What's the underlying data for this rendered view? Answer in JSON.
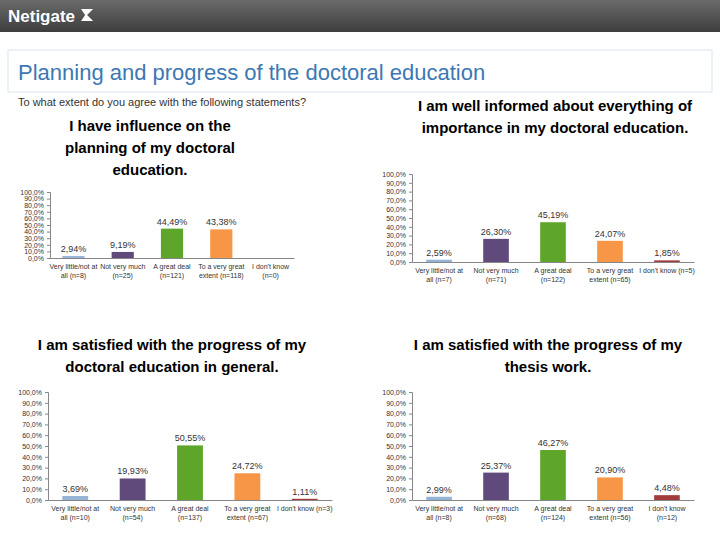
{
  "header": {
    "brand": "Netigate",
    "title": "Planning and progress of the doctoral education",
    "question": "To what extent do you agree with the following statements?"
  },
  "chart_data": [
    {
      "type": "bar",
      "title": "I have influence on the planning of my doctoral education.",
      "categories": [
        "Very little/not at all (n=8)",
        "Not very much (n=25)",
        "A great deal (n=121)",
        "To a very great extent (n=118)",
        "I don't know (n=0)"
      ],
      "values": [
        2.94,
        9.19,
        44.49,
        43.38,
        0
      ],
      "value_labels": [
        "2,94%",
        "9,19%",
        "44,49%",
        "43,38%",
        null
      ],
      "colors": [
        "#95b3d7",
        "#604a7b",
        "#5ea62a",
        "#f79646",
        "#a33b3b"
      ],
      "ylim": [
        0,
        100
      ],
      "yticks": [
        {
          "value": 0,
          "label": "0,0%"
        },
        {
          "value": 10,
          "label": "10,0%"
        },
        {
          "value": 20,
          "label": "20,0%"
        },
        {
          "value": 30,
          "label": "30,0%"
        },
        {
          "value": 40,
          "label": "40,0%"
        },
        {
          "value": 50,
          "label": "50,0%"
        },
        {
          "value": 60,
          "label": "60,0%"
        },
        {
          "value": 70,
          "label": "70,0%"
        },
        {
          "value": 80,
          "label": "80,0%"
        },
        {
          "value": 90,
          "label": "90,0%"
        },
        {
          "value": 100,
          "label": "100,0%"
        }
      ],
      "data_labels": true,
      "grid": false
    },
    {
      "type": "bar",
      "title": "I am well informed about everything of importance in my doctoral education.",
      "categories": [
        "Very little/not at all (n=7)",
        "Not very much (n=71)",
        "A great deal (n=122)",
        "To a very great extent (n=65)",
        "I don't know (n=5)"
      ],
      "values": [
        2.59,
        26.3,
        45.19,
        24.07,
        1.85
      ],
      "value_labels": [
        "2,59%",
        "26,30%",
        "45,19%",
        "24,07%",
        "1,85%"
      ],
      "colors": [
        "#95b3d7",
        "#604a7b",
        "#5ea62a",
        "#f79646",
        "#a33b3b"
      ],
      "ylim": [
        0,
        100
      ],
      "yticks": [
        {
          "value": 0,
          "label": "0,0%"
        },
        {
          "value": 10,
          "label": "10,0%"
        },
        {
          "value": 20,
          "label": "20,0%"
        },
        {
          "value": 30,
          "label": "30,0%"
        },
        {
          "value": 40,
          "label": "40,0%"
        },
        {
          "value": 50,
          "label": "50,0%"
        },
        {
          "value": 60,
          "label": "60,0%"
        },
        {
          "value": 70,
          "label": "70,0%"
        },
        {
          "value": 80,
          "label": "80,0%"
        },
        {
          "value": 90,
          "label": "90,0%"
        },
        {
          "value": 100,
          "label": "100,0%"
        }
      ],
      "data_labels": true,
      "grid": false
    },
    {
      "type": "bar",
      "title": "I am satisfied with the progress of my doctoral education in general.",
      "categories": [
        "Very little/not at all (n=10)",
        "Not very much (n=54)",
        "A great deal (n=137)",
        "To a very great extent (n=67)",
        "I don't know (n=3)"
      ],
      "values": [
        3.69,
        19.93,
        50.55,
        24.72,
        1.11
      ],
      "value_labels": [
        "3,69%",
        "19,93%",
        "50,55%",
        "24,72%",
        "1,11%"
      ],
      "colors": [
        "#95b3d7",
        "#604a7b",
        "#5ea62a",
        "#f79646",
        "#a33b3b"
      ],
      "ylim": [
        0,
        100
      ],
      "yticks": [
        {
          "value": 0,
          "label": "0,0%"
        },
        {
          "value": 10,
          "label": "10,0%"
        },
        {
          "value": 20,
          "label": "20,0%"
        },
        {
          "value": 30,
          "label": "30,0%"
        },
        {
          "value": 40,
          "label": "40,0%"
        },
        {
          "value": 50,
          "label": "50,0%"
        },
        {
          "value": 60,
          "label": "60,0%"
        },
        {
          "value": 70,
          "label": "70,0%"
        },
        {
          "value": 80,
          "label": "80,0%"
        },
        {
          "value": 90,
          "label": "90,0%"
        },
        {
          "value": 100,
          "label": "100,0%"
        }
      ],
      "data_labels": true,
      "grid": false
    },
    {
      "type": "bar",
      "title": "I am satisfied with the progress of my thesis work.",
      "categories": [
        "Very little/not at all (n=8)",
        "Not very much (n=68)",
        "A great deal (n=124)",
        "To a very great extent (n=56)",
        "I don't know (n=12)"
      ],
      "values": [
        2.99,
        25.37,
        46.27,
        20.9,
        4.48
      ],
      "value_labels": [
        "2,99%",
        "25,37%",
        "46,27%",
        "20,90%",
        "4,48%"
      ],
      "colors": [
        "#95b3d7",
        "#604a7b",
        "#5ea62a",
        "#f79646",
        "#a33b3b"
      ],
      "ylim": [
        0,
        100
      ],
      "yticks": [
        {
          "value": 0,
          "label": "0,0%"
        },
        {
          "value": 10,
          "label": "10,0%"
        },
        {
          "value": 20,
          "label": "20,0%"
        },
        {
          "value": 30,
          "label": "30,0%"
        },
        {
          "value": 40,
          "label": "40,0%"
        },
        {
          "value": 50,
          "label": "50,0%"
        },
        {
          "value": 60,
          "label": "60,0%"
        },
        {
          "value": 70,
          "label": "70,0%"
        },
        {
          "value": 80,
          "label": "80,0%"
        },
        {
          "value": 90,
          "label": "90,0%"
        },
        {
          "value": 100,
          "label": "100,0%"
        }
      ],
      "data_labels": true,
      "grid": false
    }
  ]
}
